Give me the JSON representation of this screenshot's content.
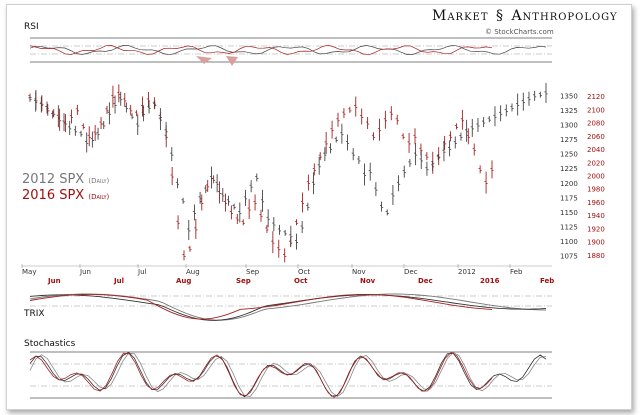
{
  "brand": {
    "title_left": "Market",
    "title_right": "Anthropology",
    "credit": "© StockCharts.com"
  },
  "panels": {
    "rsi": "RSI",
    "trix": "TRIX",
    "stochastics": "Stochastics"
  },
  "legend": {
    "s2012_label": "2012 SPX",
    "s2012_sub": "(Daily)",
    "s2016_label": "2016 SPX",
    "s2016_sub": "(Daily)"
  },
  "colors": {
    "series_2012": "#444444",
    "series_2016": "#a52020",
    "axis_2016": "#a01010"
  },
  "chart_data": {
    "type": "line",
    "y_left": {
      "ticks": [
        1075,
        1100,
        1125,
        1150,
        1175,
        1200,
        1225,
        1250,
        1275,
        1300,
        1325,
        1350
      ],
      "range": [
        1065,
        1360
      ]
    },
    "y_right": {
      "ticks": [
        1880,
        1900,
        1920,
        1940,
        1960,
        1980,
        2000,
        2020,
        2040,
        2060,
        2080,
        2100,
        2120
      ],
      "range": [
        1870,
        2130
      ]
    },
    "x_top_ticks_2011": [
      "May",
      "Jun",
      "Jul",
      "Aug",
      "Sep",
      "Oct",
      "Nov",
      "Dec",
      "2012",
      "Feb"
    ],
    "x_bottom_ticks_2015": [
      "Jun",
      "Jul",
      "Aug",
      "Sep",
      "Oct",
      "Nov",
      "Dec",
      "2016",
      "Feb"
    ],
    "series": [
      {
        "name": "2012 SPX",
        "axis": "left",
        "values": [
          1345,
          1340,
          1335,
          1330,
          1318,
          1315,
          1305,
          1295,
          1290,
          1285,
          1270,
          1275,
          1285,
          1300,
          1320,
          1335,
          1345,
          1330,
          1315,
          1300,
          1320,
          1330,
          1335,
          1310,
          1290,
          1250,
          1200,
          1170,
          1120,
          1150,
          1175,
          1190,
          1210,
          1200,
          1180,
          1170,
          1160,
          1150,
          1175,
          1195,
          1210,
          1170,
          1140,
          1130,
          1120,
          1115,
          1110,
          1100,
          1125,
          1160,
          1200,
          1230,
          1250,
          1260,
          1275,
          1285,
          1270,
          1250,
          1240,
          1215,
          1220,
          1190,
          1160,
          1150,
          1180,
          1200,
          1220,
          1235,
          1250,
          1240,
          1225,
          1230,
          1245,
          1255,
          1260,
          1270,
          1280,
          1290,
          1295,
          1300,
          1305,
          1310,
          1315,
          1320,
          1325,
          1330,
          1335,
          1340,
          1345,
          1350,
          1352,
          1355
        ]
      },
      {
        "name": "2016 SPX",
        "axis": "right",
        "values": [
          2120,
          2115,
          2110,
          2100,
          2095,
          2085,
          2080,
          2090,
          2100,
          2075,
          2060,
          2065,
          2080,
          2100,
          2120,
          2125,
          2115,
          2100,
          2095,
          2105,
          2115,
          2110,
          2090,
          2060,
          2000,
          1930,
          1880,
          1890,
          1920,
          1960,
          1985,
          1995,
          1975,
          1960,
          1945,
          1935,
          1930,
          1950,
          1960,
          1940,
          1920,
          1900,
          1890,
          1880,
          1900,
          1930,
          1960,
          1990,
          2010,
          2030,
          2050,
          2070,
          2085,
          2095,
          2100,
          2105,
          2090,
          2080,
          2060,
          2070,
          2085,
          2095,
          2085,
          2060,
          2050,
          2060,
          2040,
          2030,
          2020,
          2030,
          2050,
          2060,
          2075,
          2085,
          2060,
          2040,
          2010,
          1990,
          2010
        ]
      }
    ]
  }
}
